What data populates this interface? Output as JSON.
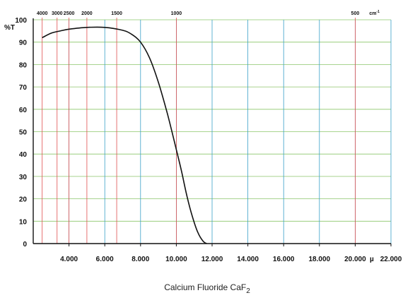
{
  "chart_data": {
    "type": "line",
    "title": "Calcium Fluoride CaF",
    "title_subscript": "2",
    "ylabel": "%T",
    "x_unit": "µ",
    "top_unit": "cm-1",
    "xlim": [
      2.0,
      22.0
    ],
    "ylim": [
      0,
      100
    ],
    "y_ticks": [
      0,
      10,
      20,
      30,
      40,
      50,
      60,
      70,
      80,
      90,
      100
    ],
    "x_ticks": [
      {
        "value": 4.0,
        "label": "4.000"
      },
      {
        "value": 6.0,
        "label": "6.000"
      },
      {
        "value": 8.0,
        "label": "8.000"
      },
      {
        "value": 10.0,
        "label": "10.000"
      },
      {
        "value": 12.0,
        "label": "12.000"
      },
      {
        "value": 14.0,
        "label": "14.000"
      },
      {
        "value": 16.0,
        "label": "16.000"
      },
      {
        "value": 18.0,
        "label": "18.000"
      },
      {
        "value": 20.0,
        "label": "20.000"
      },
      {
        "value": 22.0,
        "label": "22.000"
      }
    ],
    "top_ticks": [
      {
        "wavenumber": 4000,
        "label": "4000"
      },
      {
        "wavenumber": 3000,
        "label": "3000"
      },
      {
        "wavenumber": 2500,
        "label": "2500"
      },
      {
        "wavenumber": 2000,
        "label": "2000"
      },
      {
        "wavenumber": 1500,
        "label": "1500"
      },
      {
        "wavenumber": 1000,
        "label": "1000"
      },
      {
        "wavenumber": 500,
        "label": "500"
      }
    ],
    "grid": true,
    "colors": {
      "curve": "#111111",
      "wavelength_grid": "#3aa0c8",
      "wavenumber_grid": "#e05050",
      "horizontal_grid": "#8cc66a",
      "axis": "#111111"
    },
    "series": [
      {
        "x": [
          2.5,
          3.0,
          3.5,
          4.0,
          5.0,
          6.0,
          7.0,
          7.5,
          8.0,
          8.5,
          9.0,
          9.5,
          10.0,
          10.3,
          10.6,
          10.9,
          11.2,
          11.5,
          11.7
        ],
        "y": [
          92,
          94,
          95,
          95.8,
          96.6,
          96.6,
          95.3,
          93.5,
          90,
          83,
          72,
          58,
          42,
          32,
          21,
          12,
          5,
          1,
          0
        ]
      }
    ]
  }
}
